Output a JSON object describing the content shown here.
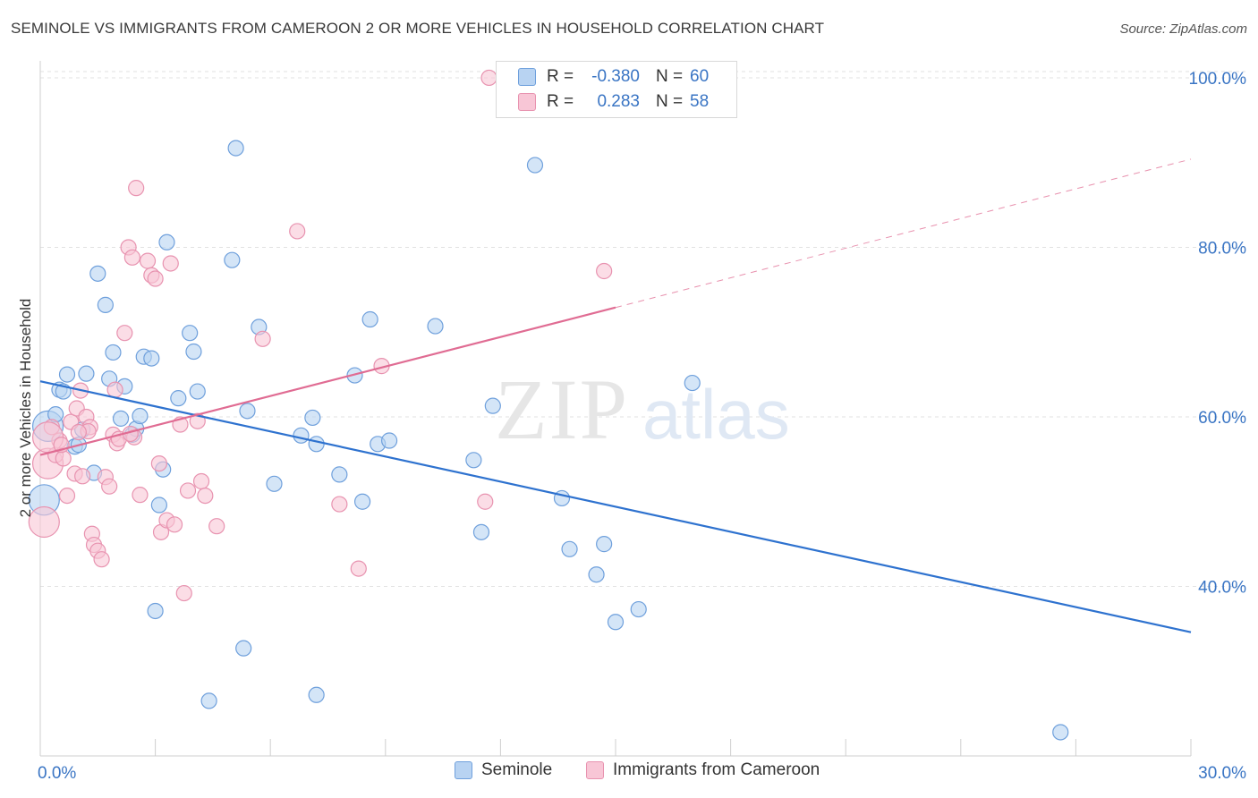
{
  "title": "SEMINOLE VS IMMIGRANTS FROM CAMEROON 2 OR MORE VEHICLES IN HOUSEHOLD CORRELATION CHART",
  "source": "Source: ZipAtlas.com",
  "watermark": {
    "zip": "ZIP",
    "atlas": "atlas"
  },
  "colors": {
    "seminole_fill": "#b8d3f2",
    "seminole_stroke": "#6fa0dc",
    "seminole_line": "#2e72cf",
    "cameroon_fill": "#f8c6d6",
    "cameroon_stroke": "#e893b0",
    "cameroon_line": "#e06c93",
    "axis_text": "#3a75c4",
    "grid": "#e2e2e2"
  },
  "stats": {
    "rows": [
      {
        "r_label": "R =",
        "r_value": "-0.380",
        "n_label": "N =",
        "n_value": "60"
      },
      {
        "r_label": "R =",
        "r_value": "0.283",
        "n_label": "N =",
        "n_value": "58"
      }
    ]
  },
  "legend": {
    "items": [
      {
        "label": "Seminole"
      },
      {
        "label": "Immigrants from Cameroon"
      }
    ]
  },
  "chart_data": {
    "type": "scatter",
    "xlabel": "",
    "ylabel": "2 or more Vehicles in Household",
    "xlim": [
      0,
      30
    ],
    "ylim": [
      20,
      102
    ],
    "x_ticks": [
      {
        "value": 0,
        "label": "0.0%"
      },
      {
        "value": 30,
        "label": "30.0%"
      }
    ],
    "y_ticks": [
      {
        "value": 40,
        "label": "40.0%"
      },
      {
        "value": 60,
        "label": "60.0%"
      },
      {
        "value": 80,
        "label": "80.0%"
      },
      {
        "value": 100,
        "label": "100.0%"
      }
    ],
    "grid": true,
    "series": [
      {
        "name": "Seminole",
        "points": [
          [
            0.1,
            50.2
          ],
          [
            0.2,
            58.9
          ],
          [
            0.4,
            60.3
          ],
          [
            0.5,
            63.2
          ],
          [
            0.6,
            63.0
          ],
          [
            0.7,
            65.0
          ],
          [
            0.9,
            56.5
          ],
          [
            1.0,
            56.7
          ],
          [
            1.2,
            65.1
          ],
          [
            1.1,
            58.5
          ],
          [
            1.4,
            53.4
          ],
          [
            1.5,
            76.9
          ],
          [
            1.7,
            73.2
          ],
          [
            1.8,
            64.5
          ],
          [
            1.9,
            67.6
          ],
          [
            2.1,
            59.8
          ],
          [
            2.2,
            63.6
          ],
          [
            2.4,
            57.9
          ],
          [
            2.5,
            58.6
          ],
          [
            2.6,
            60.1
          ],
          [
            2.7,
            67.1
          ],
          [
            2.9,
            66.9
          ],
          [
            3.1,
            49.6
          ],
          [
            3.2,
            53.8
          ],
          [
            3.3,
            80.6
          ],
          [
            3.6,
            62.2
          ],
          [
            3.9,
            69.9
          ],
          [
            4.0,
            67.7
          ],
          [
            4.1,
            63.0
          ],
          [
            5.0,
            78.5
          ],
          [
            5.1,
            91.7
          ],
          [
            5.4,
            60.7
          ],
          [
            5.7,
            70.6
          ],
          [
            6.1,
            52.1
          ],
          [
            6.8,
            57.8
          ],
          [
            7.1,
            59.9
          ],
          [
            7.2,
            56.8
          ],
          [
            7.8,
            53.2
          ],
          [
            8.2,
            64.9
          ],
          [
            8.4,
            50.0
          ],
          [
            8.6,
            71.5
          ],
          [
            8.8,
            56.8
          ],
          [
            9.1,
            57.2
          ],
          [
            10.3,
            70.7
          ],
          [
            11.3,
            54.9
          ],
          [
            11.5,
            46.4
          ],
          [
            11.8,
            61.3
          ],
          [
            12.9,
            89.7
          ],
          [
            13.6,
            50.4
          ],
          [
            13.8,
            44.4
          ],
          [
            14.5,
            41.4
          ],
          [
            14.7,
            45.0
          ],
          [
            15.0,
            35.8
          ],
          [
            15.6,
            37.3
          ],
          [
            17.0,
            64.0
          ],
          [
            3.0,
            37.1
          ],
          [
            4.4,
            26.5
          ],
          [
            5.3,
            32.7
          ],
          [
            7.2,
            27.2
          ],
          [
            26.6,
            22.8
          ]
        ]
      },
      {
        "name": "Immigrants from Cameroon",
        "points": [
          [
            0.1,
            47.6
          ],
          [
            0.2,
            54.5
          ],
          [
            0.3,
            58.8
          ],
          [
            0.4,
            55.5
          ],
          [
            0.5,
            57.2
          ],
          [
            0.6,
            55.1
          ],
          [
            0.7,
            50.7
          ],
          [
            0.8,
            59.4
          ],
          [
            0.9,
            53.3
          ],
          [
            0.95,
            61.0
          ],
          [
            1.05,
            63.1
          ],
          [
            1.1,
            53.0
          ],
          [
            1.2,
            60.0
          ],
          [
            1.3,
            58.8
          ],
          [
            1.35,
            46.2
          ],
          [
            1.4,
            44.9
          ],
          [
            1.5,
            44.2
          ],
          [
            1.6,
            43.2
          ],
          [
            1.7,
            52.9
          ],
          [
            1.8,
            51.8
          ],
          [
            1.9,
            57.9
          ],
          [
            1.95,
            63.2
          ],
          [
            2.0,
            56.9
          ],
          [
            2.2,
            69.9
          ],
          [
            2.3,
            80.0
          ],
          [
            2.4,
            78.8
          ],
          [
            2.5,
            87.0
          ],
          [
            2.6,
            50.8
          ],
          [
            2.8,
            78.4
          ],
          [
            2.9,
            76.7
          ],
          [
            3.0,
            76.3
          ],
          [
            3.1,
            54.5
          ],
          [
            3.15,
            46.4
          ],
          [
            3.3,
            47.8
          ],
          [
            3.4,
            78.1
          ],
          [
            3.5,
            47.3
          ],
          [
            3.65,
            59.1
          ],
          [
            3.75,
            39.2
          ],
          [
            3.85,
            51.3
          ],
          [
            4.1,
            59.5
          ],
          [
            4.2,
            52.4
          ],
          [
            4.3,
            50.7
          ],
          [
            4.6,
            47.1
          ],
          [
            5.8,
            69.2
          ],
          [
            6.7,
            81.9
          ],
          [
            7.8,
            49.7
          ],
          [
            8.3,
            42.1
          ],
          [
            8.9,
            66.0
          ],
          [
            11.6,
            50.0
          ],
          [
            11.7,
            100.0
          ],
          [
            14.7,
            77.2
          ],
          [
            0.2,
            57.6
          ],
          [
            0.55,
            56.7
          ],
          [
            1.25,
            58.3
          ],
          [
            2.05,
            57.4
          ],
          [
            2.45,
            57.6
          ],
          [
            1.0,
            58.2
          ],
          [
            2.35,
            58.0
          ]
        ]
      }
    ],
    "trend_lines": [
      {
        "series": "Seminole",
        "x": [
          0,
          30
        ],
        "y": [
          64.2,
          34.6
        ],
        "style": "solid"
      },
      {
        "series": "Immigrants from Cameroon",
        "x": [
          0,
          15
        ],
        "y": [
          55.5,
          72.9
        ],
        "style": "solid"
      },
      {
        "series": "Immigrants from Cameroon",
        "x": [
          15,
          30
        ],
        "y": [
          72.9,
          90.4
        ],
        "style": "dashed"
      }
    ]
  }
}
